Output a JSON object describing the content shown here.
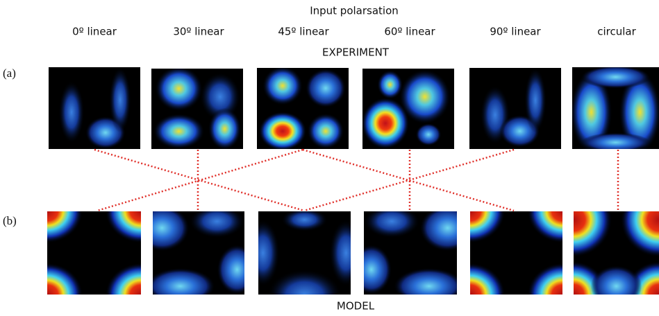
{
  "title": "Input polarsation",
  "columns": [
    "0º linear",
    "30º linear",
    "45º linear",
    "60º linear",
    "90º linear",
    "circular"
  ],
  "rows": [
    {
      "label": "(a)",
      "title": "EXPERIMENT"
    },
    {
      "label": "(b)",
      "title": "MODEL"
    }
  ]
}
